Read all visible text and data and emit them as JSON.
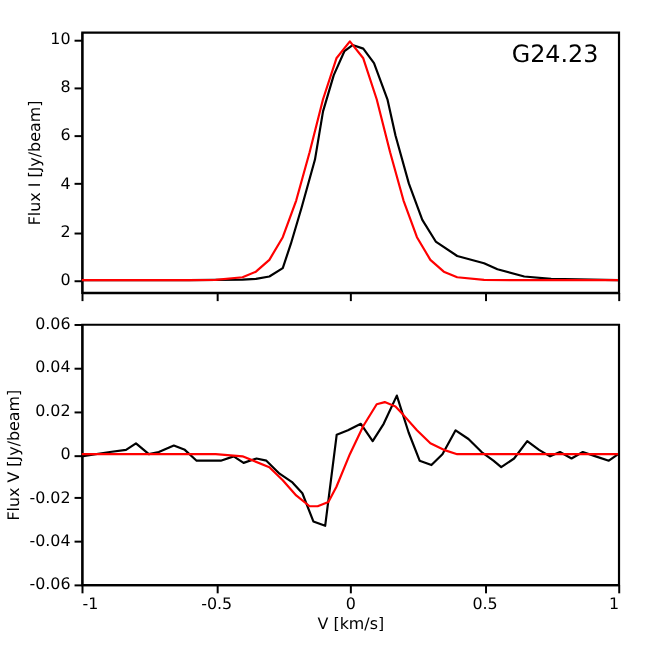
{
  "chart_data": [
    {
      "type": "line",
      "ylabel": "Flux I [Jy/beam]",
      "annotations": [
        "G24.23"
      ],
      "xlim": [
        -1,
        1
      ],
      "xticks": [
        {
          "value": -1,
          "label": null
        },
        {
          "value": -0.5,
          "label": null
        },
        {
          "value": 0,
          "label": null
        },
        {
          "value": 0.5,
          "label": null
        },
        {
          "value": 1,
          "label": null
        }
      ],
      "ylim": [
        -0.5,
        10.3
      ],
      "yticks": [
        0,
        2,
        4,
        6,
        8,
        10
      ],
      "tick_labels": "y",
      "grid": false,
      "legend": false,
      "line_style": "solid",
      "series": [
        {
          "color": "#000000",
          "x": [
            -1,
            -0.6,
            -0.4,
            -0.35,
            -0.3,
            -0.25,
            -0.22,
            -0.18,
            -0.13,
            -0.1,
            -0.06,
            -0.02,
            0.01,
            0.05,
            0.09,
            0.14,
            0.17,
            0.22,
            0.27,
            0.32,
            0.4,
            0.5,
            0.55,
            0.65,
            0.75,
            1
          ],
          "values": [
            0,
            0,
            0.02,
            0.05,
            0.15,
            0.5,
            1.5,
            3,
            5,
            7,
            8.5,
            9.5,
            9.75,
            9.6,
            9,
            7.5,
            6,
            4,
            2.5,
            1.6,
            1.0,
            0.7,
            0.45,
            0.15,
            0.05,
            0
          ]
        },
        {
          "color": "#ff0000",
          "x": [
            -1,
            -0.6,
            -0.5,
            -0.4,
            -0.35,
            -0.3,
            -0.25,
            -0.2,
            -0.15,
            -0.1,
            -0.05,
            0,
            0.05,
            0.1,
            0.15,
            0.2,
            0.25,
            0.3,
            0.35,
            0.4,
            0.5,
            0.6,
            1
          ],
          "values": [
            0,
            0,
            0.01,
            0.12,
            0.35,
            0.84,
            1.78,
            3.3,
            5.3,
            7.5,
            9.2,
            9.9,
            9.2,
            7.5,
            5.3,
            3.3,
            1.78,
            0.84,
            0.35,
            0.12,
            0.01,
            0,
            0
          ]
        }
      ]
    },
    {
      "type": "line",
      "xlabel": "V [km/s]",
      "ylabel": "Flux V [Jy/beam]",
      "xlim": [
        -1,
        1
      ],
      "xticks": [
        -1,
        -0.5,
        0,
        0.5,
        1
      ],
      "ylim": [
        -0.06,
        0.06
      ],
      "yticks": [
        -0.06,
        -0.04,
        -0.02,
        0,
        0.02,
        0.04,
        0.06
      ],
      "grid": false,
      "legend": false,
      "line_style": "solid",
      "series": [
        {
          "color": "#000000",
          "x": [
            -1,
            -0.894,
            -0.834,
            -0.797,
            -0.749,
            -0.712,
            -0.656,
            -0.615,
            -0.571,
            -0.481,
            -0.433,
            -0.396,
            -0.348,
            -0.311,
            -0.262,
            -0.214,
            -0.177,
            -0.136,
            -0.092,
            -0.049,
            -0.007,
            0.041,
            0.085,
            0.126,
            0.175,
            0.219,
            0.26,
            0.304,
            0.345,
            0.394,
            0.442,
            0.491,
            0.535,
            0.564,
            0.612,
            0.661,
            0.705,
            0.746,
            0.783,
            0.826,
            0.868,
            0.916,
            0.965,
            1
          ],
          "values": [
            -0.001,
            0.001,
            0.002,
            0.005,
            0,
            0.001,
            0.004,
            0.002,
            -0.003,
            -0.003,
            -0.001,
            -0.004,
            -0.002,
            -0.003,
            -0.009,
            -0.013,
            -0.018,
            -0.031,
            -0.033,
            0.009,
            0.011,
            0.014,
            0.006,
            0.014,
            0.027,
            0.01,
            -0.003,
            -0.005,
            0,
            0.011,
            0.007,
            0.001,
            -0.003,
            -0.006,
            -0.002,
            0.006,
            0.002,
            -0.001,
            0.001,
            -0.002,
            0.001,
            -0.001,
            -0.003,
            0
          ]
        },
        {
          "color": "#ff0000",
          "x": [
            -1,
            -0.5,
            -0.4,
            -0.3,
            -0.25,
            -0.2,
            -0.15,
            -0.12,
            -0.08,
            -0.05,
            0,
            0.05,
            0.1,
            0.13,
            0.17,
            0.2,
            0.25,
            0.3,
            0.35,
            0.4,
            0.5,
            1
          ],
          "values": [
            0,
            0,
            -0.001,
            -0.006,
            -0.012,
            -0.019,
            -0.024,
            -0.024,
            -0.022,
            -0.015,
            0,
            0.013,
            0.023,
            0.024,
            0.022,
            0.018,
            0.011,
            0.005,
            0.002,
            0,
            0,
            0
          ]
        }
      ]
    }
  ]
}
